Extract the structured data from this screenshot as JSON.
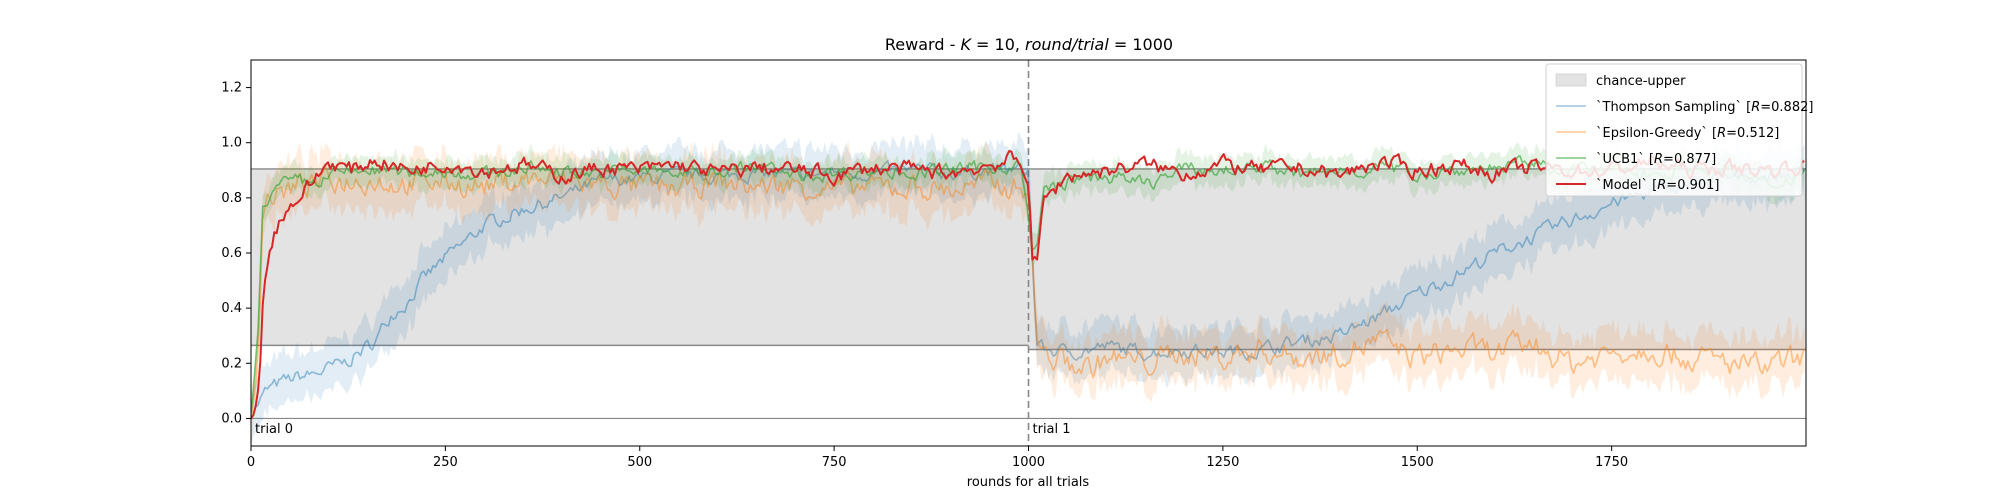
{
  "chart_data": {
    "type": "line",
    "title": "Reward - K = 10, round/trial = 1000",
    "title_parts": {
      "prefix": "Reward - ",
      "k_var": "K",
      "k_eq": " = 10, ",
      "r_var": "round/trial",
      "r_eq": " = 1000"
    },
    "xlabel": "rounds for all trials",
    "ylabel": "",
    "xlim": [
      0,
      2000
    ],
    "ylim": [
      -0.1,
      1.3
    ],
    "xticks": [
      0,
      250,
      500,
      750,
      1000,
      1250,
      1500,
      1750
    ],
    "xtick_labels": [
      "0",
      "250",
      "500",
      "750",
      "1000",
      "1250",
      "1500",
      "1750"
    ],
    "yticks": [
      0.0,
      0.2,
      0.4,
      0.6,
      0.8,
      1.0,
      1.2
    ],
    "ytick_labels": [
      "0.0",
      "0.2",
      "0.4",
      "0.6",
      "0.8",
      "1.0",
      "1.2"
    ],
    "grid": false,
    "legend_position": "top-right",
    "trial_boundary": 1000,
    "annotations": [
      {
        "text": "trial 0",
        "x": 0,
        "y": 0.0
      },
      {
        "text": "trial 1",
        "x": 1000,
        "y": 0.0
      }
    ],
    "chance_band": {
      "name": "chance-upper",
      "color": "#e3e3e3",
      "segments": [
        {
          "x": [
            0,
            1000
          ],
          "lower": 0.265,
          "upper": 0.905
        },
        {
          "x": [
            1000,
            2000
          ],
          "lower": 0.25,
          "upper": 0.905
        }
      ],
      "zero_line": 0.0
    },
    "series": [
      {
        "name": "`Thompson Sampling` [R=0.882]",
        "legend_parts": {
          "pre": "`Thompson Sampling` [",
          "var": "R",
          "post": "=0.882]"
        },
        "color": "#1f77b4",
        "alpha": 0.45,
        "width": 1.6,
        "x": [
          0,
          10,
          20,
          40,
          60,
          80,
          100,
          120,
          140,
          160,
          170,
          180,
          200,
          220,
          250,
          280,
          300,
          350,
          400,
          450,
          500,
          550,
          600,
          650,
          700,
          750,
          800,
          850,
          900,
          950,
          990,
          1000,
          1010,
          1020,
          1050,
          1080,
          1100,
          1150,
          1200,
          1250,
          1300,
          1350,
          1400,
          1450,
          1500,
          1550,
          1600,
          1650,
          1700,
          1750,
          1800,
          1850,
          1900,
          1950,
          1999
        ],
        "y": [
          0.02,
          0.06,
          0.1,
          0.13,
          0.15,
          0.16,
          0.18,
          0.2,
          0.24,
          0.28,
          0.33,
          0.38,
          0.42,
          0.5,
          0.58,
          0.65,
          0.7,
          0.76,
          0.8,
          0.86,
          0.87,
          0.88,
          0.88,
          0.89,
          0.88,
          0.89,
          0.89,
          0.9,
          0.89,
          0.9,
          0.9,
          0.9,
          0.28,
          0.25,
          0.24,
          0.25,
          0.26,
          0.24,
          0.25,
          0.24,
          0.25,
          0.28,
          0.3,
          0.37,
          0.45,
          0.52,
          0.6,
          0.66,
          0.72,
          0.78,
          0.82,
          0.85,
          0.87,
          0.88,
          0.89
        ]
      },
      {
        "name": "`Epsilon-Greedy` [R=0.512]",
        "legend_parts": {
          "pre": "`Epsilon-Greedy` [",
          "var": "R",
          "post": "=0.512]"
        },
        "color": "#ff7f0e",
        "alpha": 0.45,
        "width": 1.6,
        "x": [
          0,
          10,
          15,
          20,
          40,
          60,
          100,
          150,
          200,
          250,
          300,
          350,
          400,
          450,
          500,
          550,
          600,
          650,
          700,
          750,
          800,
          850,
          900,
          950,
          990,
          1000,
          1010,
          1020,
          1050,
          1080,
          1100,
          1150,
          1200,
          1250,
          1300,
          1350,
          1400,
          1450,
          1500,
          1550,
          1600,
          1650,
          1700,
          1750,
          1800,
          1850,
          1900,
          1950,
          1999
        ],
        "y": [
          0.0,
          0.3,
          0.75,
          0.8,
          0.82,
          0.84,
          0.86,
          0.87,
          0.85,
          0.86,
          0.84,
          0.87,
          0.86,
          0.85,
          0.84,
          0.83,
          0.86,
          0.84,
          0.85,
          0.83,
          0.84,
          0.84,
          0.83,
          0.85,
          0.84,
          0.84,
          0.3,
          0.23,
          0.2,
          0.18,
          0.22,
          0.2,
          0.24,
          0.22,
          0.25,
          0.22,
          0.24,
          0.28,
          0.22,
          0.25,
          0.24,
          0.27,
          0.2,
          0.24,
          0.26,
          0.22,
          0.2,
          0.18,
          0.22
        ]
      },
      {
        "name": "`UCB1` [R=0.877]",
        "legend_parts": {
          "pre": "`UCB1` [",
          "var": "R",
          "post": "=0.877]"
        },
        "color": "#2ca02c",
        "alpha": 0.6,
        "width": 1.6,
        "x": [
          0,
          10,
          15,
          20,
          40,
          60,
          80,
          100,
          150,
          200,
          250,
          300,
          350,
          400,
          450,
          500,
          550,
          600,
          650,
          700,
          750,
          800,
          850,
          900,
          950,
          990,
          1000,
          1005,
          1010,
          1020,
          1050,
          1100,
          1150,
          1200,
          1250,
          1300,
          1350,
          1400,
          1450,
          1500,
          1550,
          1600,
          1650,
          1700,
          1750,
          1800,
          1850,
          1900,
          1950,
          1999
        ],
        "y": [
          0.0,
          0.35,
          0.78,
          0.8,
          0.84,
          0.86,
          0.85,
          0.88,
          0.9,
          0.89,
          0.9,
          0.88,
          0.91,
          0.9,
          0.89,
          0.9,
          0.89,
          0.9,
          0.91,
          0.88,
          0.89,
          0.9,
          0.89,
          0.9,
          0.91,
          0.92,
          0.7,
          0.6,
          0.62,
          0.82,
          0.86,
          0.88,
          0.85,
          0.9,
          0.9,
          0.92,
          0.88,
          0.9,
          0.91,
          0.89,
          0.9,
          0.91,
          0.92,
          0.9,
          0.9,
          0.89,
          0.91,
          0.9,
          0.84,
          0.9
        ]
      },
      {
        "name": "`Model` [R=0.901]",
        "legend_parts": {
          "pre": "`Model` [",
          "var": "R",
          "post": "=0.901]"
        },
        "color": "#d62728",
        "alpha": 1.0,
        "width": 2.0,
        "x": [
          0,
          10,
          15,
          20,
          30,
          40,
          60,
          80,
          100,
          130,
          160,
          200,
          250,
          300,
          350,
          400,
          450,
          500,
          550,
          600,
          650,
          700,
          750,
          800,
          850,
          900,
          950,
          980,
          990,
          1000,
          1005,
          1010,
          1015,
          1020,
          1030,
          1050,
          1100,
          1150,
          1200,
          1250,
          1300,
          1350,
          1400,
          1450,
          1500,
          1550,
          1600,
          1650,
          1700,
          1750,
          1800,
          1850,
          1900,
          1950,
          1999
        ],
        "y": [
          0.0,
          0.1,
          0.4,
          0.55,
          0.68,
          0.74,
          0.8,
          0.86,
          0.93,
          0.9,
          0.94,
          0.9,
          0.93,
          0.9,
          0.92,
          0.88,
          0.91,
          0.9,
          0.92,
          0.89,
          0.91,
          0.9,
          0.88,
          0.91,
          0.9,
          0.89,
          0.92,
          0.94,
          0.9,
          0.88,
          0.6,
          0.56,
          0.68,
          0.78,
          0.82,
          0.88,
          0.9,
          0.92,
          0.89,
          0.92,
          0.9,
          0.91,
          0.88,
          0.93,
          0.9,
          0.92,
          0.89,
          0.91,
          0.9,
          0.9,
          0.93,
          0.9,
          0.91,
          0.9,
          0.92
        ]
      }
    ]
  }
}
